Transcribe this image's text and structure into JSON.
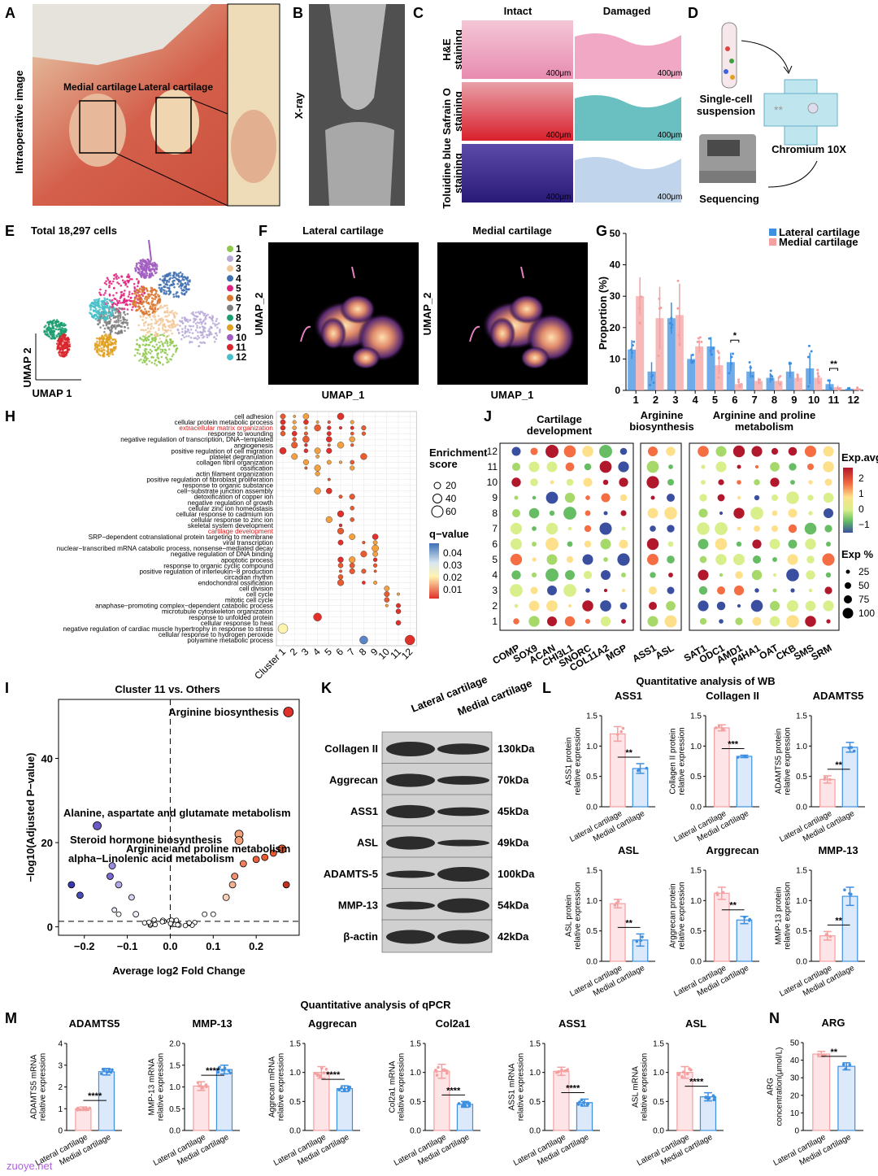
{
  "panels": {
    "A": {
      "label": "A",
      "ylabel": "Intraoperative image",
      "medial": "Medial cartilage",
      "lateral": "Lateral cartilage"
    },
    "B": {
      "label": "B",
      "ylabel": "X-ray"
    },
    "C": {
      "label": "C",
      "cols": [
        "Intact",
        "Damaged"
      ],
      "rows": [
        "H&E\nstaining",
        "Safrain O\nstaining",
        "Toluidine blue\nstaining"
      ],
      "scale": "400μm"
    },
    "D": {
      "label": "D",
      "suspension": "Single-cell\nsuspension",
      "chromium": "Chromium 10X",
      "sequencing": "Sequencing"
    },
    "E": {
      "label": "E",
      "title": "Total 18,297 cells",
      "xlabel": "UMAP 1",
      "ylabel": "UMAP 2",
      "clusters": [
        {
          "id": "1",
          "color": "#8fc94e"
        },
        {
          "id": "2",
          "color": "#b8a9d8"
        },
        {
          "id": "3",
          "color": "#f2c89a"
        },
        {
          "id": "4",
          "color": "#3f6fb0"
        },
        {
          "id": "5",
          "color": "#e0207c"
        },
        {
          "id": "6",
          "color": "#d9772f"
        },
        {
          "id": "7",
          "color": "#7f7f7f"
        },
        {
          "id": "8",
          "color": "#1a9e6e"
        },
        {
          "id": "9",
          "color": "#e0a020"
        },
        {
          "id": "10",
          "color": "#a05cc0"
        },
        {
          "id": "11",
          "color": "#d8262c"
        },
        {
          "id": "12",
          "color": "#46c0c8"
        }
      ]
    },
    "F": {
      "label": "F",
      "left": "Lateral cartilage",
      "right": "Medial cartilage",
      "xlabel": "UMAP_1",
      "ylabel": "UMAP_2"
    },
    "G": {
      "label": "G",
      "ylabel": "Proportion (%)",
      "legend": [
        "Lateral cartilage",
        "Medial cartilage"
      ],
      "colors": [
        "#3d8fe0",
        "#f4a0a0"
      ],
      "categories": [
        "1",
        "2",
        "3",
        "4",
        "5",
        "6",
        "7",
        "8",
        "9",
        "10",
        "11",
        "12"
      ],
      "highlight": "11",
      "ylim": [
        0,
        50
      ],
      "yticks": [
        0,
        10,
        20,
        30,
        40,
        50
      ],
      "lateral": [
        13,
        6,
        23,
        10,
        14,
        9,
        6,
        4,
        6,
        7,
        2,
        0.5
      ],
      "lateral_err": [
        3,
        3,
        5,
        1.5,
        3,
        3,
        2,
        1.5,
        2,
        5,
        1,
        0.3
      ],
      "medial": [
        30,
        23,
        24,
        14,
        8,
        2,
        3,
        3,
        4,
        4,
        1,
        0.5
      ],
      "medial_err": [
        6,
        10,
        10,
        2,
        3,
        1,
        1,
        1,
        1,
        2,
        0.5,
        0.3
      ],
      "sig": [
        {
          "cat": "6",
          "text": "*"
        },
        {
          "cat": "11",
          "text": "**"
        }
      ]
    },
    "H": {
      "label": "H",
      "terms": [
        "cell adhesion",
        "cellular protein metabolic process",
        "extracellular matrix organization",
        "response to wounding",
        "negative regulation of transcription, DNA−templated",
        "angiogenesis",
        "positive regulation of cell migration",
        "platelet degranulation",
        "collagen fibril organization",
        "ossification",
        "actin filament organization",
        "positive regulation of fibroblast proliferation",
        "response to organic substance",
        "cell−substrate junction assembly",
        "detoxification of copper ion",
        "negative regulation of growth",
        "cellular zinc ion homeostasis",
        "cellular response to cadmium ion",
        "cellular response to zinc ion",
        "skeletal system development",
        "cartilage development",
        "SRP−dependent cotranslational protein targeting to membrane",
        "viral transcription",
        "nuclear−transcribed mRNA catabolic process, nonsense−mediated decay",
        "negative regulation of DNA binding",
        "apoptotic process",
        "response to organic cyclic compound",
        "positive regulation of interleukin−8 production",
        "circadian rhythm",
        "endochondral ossification",
        "cell division",
        "cell cycle",
        "mitotic cell cycle",
        "anaphase−promoting complex−dependent catabolic process",
        "microtubule cytoskeleton organization",
        "response to unfolded protein",
        "cellular response to heat",
        "negative regulation of cardiac muscle hypertrophy in response to stress",
        "cellular response to hydrogen peroxide",
        "polyamine metabolic process"
      ],
      "red_terms": [
        "extracellular matrix organization",
        "cartilage development"
      ],
      "clusters": [
        "Cluster 1",
        "2",
        "3",
        "4",
        "5",
        "6",
        "7",
        "8",
        "9",
        "10",
        "11",
        "12"
      ],
      "legend_size_title": "Enrichment\nscore",
      "sizes": [
        "20",
        "40",
        "60"
      ],
      "legend_q_title": "q−value",
      "q_ticks": [
        "0.04",
        "0.03",
        "0.02",
        "0.01"
      ]
    },
    "I": {
      "label": "I",
      "title": "Cluster 11 vs. Others",
      "xlabel": "Average log2 Fold Change",
      "ylabel": "−log10(Adjusted P−value)",
      "xticks": [
        "−0.2",
        "−0.1",
        "0.0",
        "0.1",
        "0.2"
      ],
      "yticks": [
        "0",
        "20",
        "40"
      ],
      "annotations": [
        {
          "text": "Arginine biosynthesis",
          "red": true
        },
        {
          "text": "Alanine, aspartate and glutamate metabolism",
          "red": false
        },
        {
          "text": "Steroid hormone biosynthesis",
          "red": false
        },
        {
          "text": "Arginine and proline metabolism",
          "red": true
        },
        {
          "text": "alpha−Linolenic acid metabolism",
          "red": false
        }
      ]
    },
    "J": {
      "label": "J",
      "groups": [
        "Cartilage\ndevelopment",
        "Arginine\nbiosynthesis",
        "Arginine and proline\nmetabolism"
      ],
      "genes": [
        [
          "COMP",
          "SOX9",
          "ACAN",
          "CHI3L1",
          "SNORC",
          "COL11A2",
          "MGP"
        ],
        [
          "ASS1",
          "ASL"
        ],
        [
          "SAT1",
          "ODC1",
          "AMD1",
          "P4HA1",
          "OAT",
          "CKB",
          "SMS",
          "SRM"
        ]
      ],
      "rows": [
        "12",
        "11",
        "10",
        "9",
        "8",
        "7",
        "6",
        "5",
        "4",
        "3",
        "2",
        "1"
      ],
      "exp_title": "Exp.avg",
      "exp_ticks": [
        "2",
        "1",
        "0",
        "−1"
      ],
      "pct_title": "Exp %",
      "pct": [
        "25",
        "50",
        "75",
        "100"
      ]
    },
    "K": {
      "label": "K",
      "cols": [
        "Lateral cartilage",
        "Medial cartilage"
      ],
      "bands": [
        {
          "name": "Collagen II",
          "kda": "130kDa"
        },
        {
          "name": "Aggrecan",
          "kda": "70kDa"
        },
        {
          "name": "ASS1",
          "kda": "45kDa"
        },
        {
          "name": "ASL",
          "kda": "49kDa"
        },
        {
          "name": "ADAMTS-5",
          "kda": "100kDa"
        },
        {
          "name": "MMP-13",
          "kda": "54kDa"
        },
        {
          "name": "β-actin",
          "kda": "42kDa"
        }
      ]
    },
    "L": {
      "label": "L",
      "title": "Quantitative analysis of WB",
      "xcats": [
        "Lateral cartilage",
        "Medial cartilage"
      ],
      "charts": [
        {
          "title": "ASS1",
          "ylabel": "ASS1 protein\nrelative expression",
          "values": [
            1.2,
            0.63
          ],
          "err": [
            0.12,
            0.08
          ],
          "ymax": 1.5,
          "yticks": [
            "0.0",
            "0.5",
            "1.0",
            "1.5"
          ],
          "sig": "**"
        },
        {
          "title": "Collagen II",
          "ylabel": "Collagen II protein\nrelative expression",
          "values": [
            1.3,
            0.83
          ],
          "err": [
            0.05,
            0.02
          ],
          "ymax": 1.5,
          "yticks": [
            "0.0",
            "0.5",
            "1.0",
            "1.5"
          ],
          "sig": "***"
        },
        {
          "title": "ADAMTS5",
          "ylabel": "ADAMTS5 protein\nrelative expression",
          "values": [
            0.45,
            0.98
          ],
          "err": [
            0.06,
            0.08
          ],
          "ymax": 1.5,
          "yticks": [
            "0.0",
            "0.5",
            "1.0",
            "1.5"
          ],
          "sig": "**"
        },
        {
          "title": "ASL",
          "ylabel": "ASL protein\nrelative expression",
          "values": [
            0.95,
            0.35
          ],
          "err": [
            0.07,
            0.1
          ],
          "ymax": 1.5,
          "yticks": [
            "0.0",
            "0.5",
            "1.0",
            "1.5"
          ],
          "sig": "**"
        },
        {
          "title": "Arggrecan",
          "ylabel": "Arggrecan protein\nrelative expression",
          "values": [
            1.12,
            0.68
          ],
          "err": [
            0.1,
            0.06
          ],
          "ymax": 1.5,
          "yticks": [
            "0.0",
            "0.5",
            "1.0",
            "1.5"
          ],
          "sig": "**"
        },
        {
          "title": "MMP-13",
          "ylabel": "MMP-13 protein\nrelative expression",
          "values": [
            0.42,
            1.07
          ],
          "err": [
            0.07,
            0.15
          ],
          "ymax": 1.5,
          "yticks": [
            "0.0",
            "0.5",
            "1.0",
            "1.5"
          ],
          "sig": "**"
        }
      ]
    },
    "M": {
      "label": "M",
      "title": "Quantitative analysis of qPCR",
      "xcats": [
        "Lateral cartilage",
        "Medial cartilage"
      ],
      "charts": [
        {
          "title": "ADAMTS5",
          "ylabel": "ADAMTS5 mRNA\nrelative expression",
          "values": [
            1.0,
            2.7
          ],
          "err": [
            0.08,
            0.15
          ],
          "ymax": 4,
          "yticks": [
            "0",
            "1",
            "2",
            "3",
            "4"
          ],
          "sig": "****"
        },
        {
          "title": "MMP-13",
          "ylabel": "MMP-13 mRNA\nrelative expression",
          "values": [
            1.02,
            1.4
          ],
          "err": [
            0.1,
            0.1
          ],
          "ymax": 2.0,
          "yticks": [
            "0.0",
            "0.5",
            "1.0",
            "1.5",
            "2.0"
          ],
          "sig": "****"
        },
        {
          "title": "Aggrecan",
          "ylabel": "Aggrecan mRNA\nrelative expression",
          "values": [
            1.0,
            0.72
          ],
          "err": [
            0.1,
            0.05
          ],
          "ymax": 1.5,
          "yticks": [
            "0.0",
            "0.5",
            "1.0",
            "1.5"
          ],
          "sig": "****"
        },
        {
          "title": "Col2a1",
          "ylabel": "Col2a1 mRNA\nrelative expression",
          "values": [
            1.02,
            0.45
          ],
          "err": [
            0.12,
            0.05
          ],
          "ymax": 1.5,
          "yticks": [
            "0.0",
            "0.5",
            "1.0",
            "1.5"
          ],
          "sig": "****"
        },
        {
          "title": "ASS1",
          "ylabel": "ASS1 mRNA\nrelative expression",
          "values": [
            1.02,
            0.48
          ],
          "err": [
            0.07,
            0.06
          ],
          "ymax": 1.5,
          "yticks": [
            "0.0",
            "0.5",
            "1.0",
            "1.5"
          ],
          "sig": "****"
        },
        {
          "title": "ASL",
          "ylabel": "ASL mRNA\nrelative expression",
          "values": [
            1.0,
            0.58
          ],
          "err": [
            0.1,
            0.07
          ],
          "ymax": 1.5,
          "yticks": [
            "0.0",
            "0.5",
            "1.0",
            "1.5"
          ],
          "sig": "****"
        }
      ]
    },
    "N": {
      "label": "N",
      "title": "ARG",
      "ylabel": "ARG\nconcentration(μmol/L)",
      "values": [
        43.5,
        36.5
      ],
      "err": [
        1.5,
        2
      ],
      "ymax": 50,
      "yticks": [
        "0",
        "10",
        "20",
        "30",
        "40",
        "50"
      ],
      "sig": "**",
      "xcats": [
        "Lateral cartilage",
        "Medial cartilage"
      ]
    }
  },
  "watermark": "zuoye.net"
}
